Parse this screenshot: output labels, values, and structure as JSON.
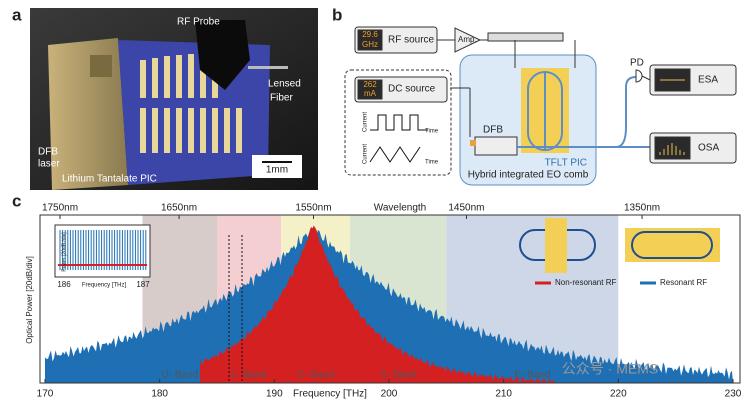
{
  "panel_labels": [
    "a",
    "b",
    "c"
  ],
  "photo": {
    "rf_probe": "RF Probe",
    "lensed_fiber": [
      "Lensed",
      "Fiber"
    ],
    "dfb_laser": [
      "DFB",
      "laser"
    ],
    "pic": "Lithium Tantalate PIC",
    "scale_bar": "1mm"
  },
  "setup": {
    "rf_value": [
      "29.6",
      "GHz"
    ],
    "rf_source": "RF source",
    "amp": "Amp.",
    "dc_value": [
      "262",
      "mA"
    ],
    "dc_source": "DC source",
    "current": "Current",
    "time": "Time",
    "dfb": "DFB",
    "pic_name": "TFLT PIC",
    "pic_caption": "Hybrid integrated EO comb",
    "pd": "PD",
    "esa": "ESA",
    "osa": "OSA"
  },
  "spectrum": {
    "x_label": "Frequency [THz]",
    "y_label": "Optical Power [20dB/div]",
    "top_label": "Wavelength",
    "xlim": [
      170,
      230
    ],
    "xticks": [
      170,
      180,
      190,
      200,
      210,
      220,
      230
    ],
    "wavelength_ticks": [
      {
        "value": 1750,
        "label": "1750nm"
      },
      {
        "value": 1650,
        "label": "1650nm"
      },
      {
        "value": 1550,
        "label": "1550nm"
      },
      {
        "value": 1450,
        "label": "1450nm"
      },
      {
        "value": 1350,
        "label": "1350nm"
      }
    ],
    "bands": [
      {
        "name": "U- Band",
        "range": [
          178.5,
          185
        ],
        "color": "#d8cccb"
      },
      {
        "name": "L- Band",
        "range": [
          185,
          190.6
        ],
        "color": "#f3cfd2"
      },
      {
        "name": "C- Band",
        "range": [
          190.6,
          196.6
        ],
        "color": "#f4f0c8"
      },
      {
        "name": "S- Band",
        "range": [
          196.6,
          205
        ],
        "color": "#d9e5d0"
      },
      {
        "name": "E- Band",
        "range": [
          205,
          220
        ],
        "color": "#cdd7e7"
      }
    ],
    "series": [
      {
        "name": "Non-resonant RF",
        "color": "#d42020"
      },
      {
        "name": "Resonant RF",
        "color": "#1f6fb4"
      }
    ],
    "inset": {
      "xticks": [
        "186",
        "187"
      ],
      "x_label": "Frequency [THz]",
      "y_label": "Power [20dB /div]"
    },
    "watermark": "公众号 · MEMS"
  }
}
